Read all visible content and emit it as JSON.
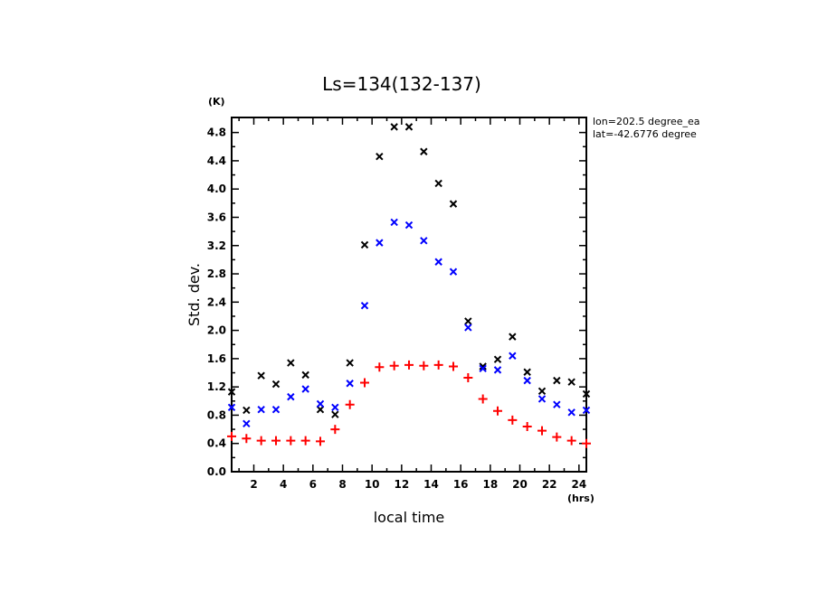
{
  "chart_data": {
    "type": "scatter",
    "title": "Ls=134(132-137)",
    "xlabel": "local time",
    "ylabel": "Std. dev.",
    "x_unit": "(hrs)",
    "y_unit": "(K)",
    "xlim": [
      0.5,
      24.5
    ],
    "ylim": [
      0.0,
      5.0
    ],
    "x_ticks": [
      2,
      4,
      6,
      8,
      10,
      12,
      14,
      16,
      18,
      20,
      22,
      24
    ],
    "x_tick_labels": [
      "2",
      "4",
      "6",
      "8",
      "10",
      "12",
      "14",
      "16",
      "18",
      "20",
      "22",
      "24"
    ],
    "y_ticks": [
      0.0,
      0.4,
      0.8,
      1.2,
      1.6,
      2.0,
      2.4,
      2.8,
      3.2,
      3.6,
      4.0,
      4.4,
      4.8
    ],
    "y_tick_labels": [
      "0.0",
      "0.4",
      "0.8",
      "1.2",
      "1.6",
      "2.0",
      "2.4",
      "2.8",
      "3.2",
      "3.6",
      "4.0",
      "4.4",
      "4.8"
    ],
    "grid": false,
    "annotations": [
      "lon=202.5 degree_ea",
      "lat=-42.6776 degree"
    ],
    "x": [
      0.5,
      1.5,
      2.5,
      3.5,
      4.5,
      5.5,
      6.5,
      7.5,
      8.5,
      9.5,
      10.5,
      11.5,
      12.5,
      13.5,
      14.5,
      15.5,
      16.5,
      17.5,
      18.5,
      19.5,
      20.5,
      21.5,
      22.5,
      23.5,
      24.5
    ],
    "series": [
      {
        "name": "black-x",
        "marker": "x",
        "color": "#000000",
        "values": [
          1.13,
          0.87,
          1.36,
          1.24,
          1.54,
          1.37,
          0.88,
          0.81,
          1.54,
          3.21,
          4.46,
          4.88,
          4.88,
          4.53,
          4.08,
          3.79,
          2.13,
          1.49,
          1.59,
          1.91,
          1.41,
          1.14,
          1.29,
          1.27,
          1.1
        ]
      },
      {
        "name": "blue-x",
        "marker": "x",
        "color": "#0000ff",
        "values": [
          0.91,
          0.68,
          0.88,
          0.88,
          1.06,
          1.17,
          0.96,
          0.91,
          1.25,
          2.35,
          3.24,
          3.53,
          3.49,
          3.27,
          2.97,
          2.83,
          2.04,
          1.46,
          1.44,
          1.64,
          1.29,
          1.03,
          0.95,
          0.84,
          0.87
        ]
      },
      {
        "name": "red-plus",
        "marker": "+",
        "color": "#ff0000",
        "values": [
          0.5,
          0.47,
          0.44,
          0.44,
          0.44,
          0.44,
          0.43,
          0.6,
          0.95,
          1.26,
          1.48,
          1.5,
          1.51,
          1.5,
          1.51,
          1.49,
          1.33,
          1.03,
          0.86,
          0.73,
          0.64,
          0.58,
          0.49,
          0.44,
          0.4
        ]
      }
    ]
  }
}
